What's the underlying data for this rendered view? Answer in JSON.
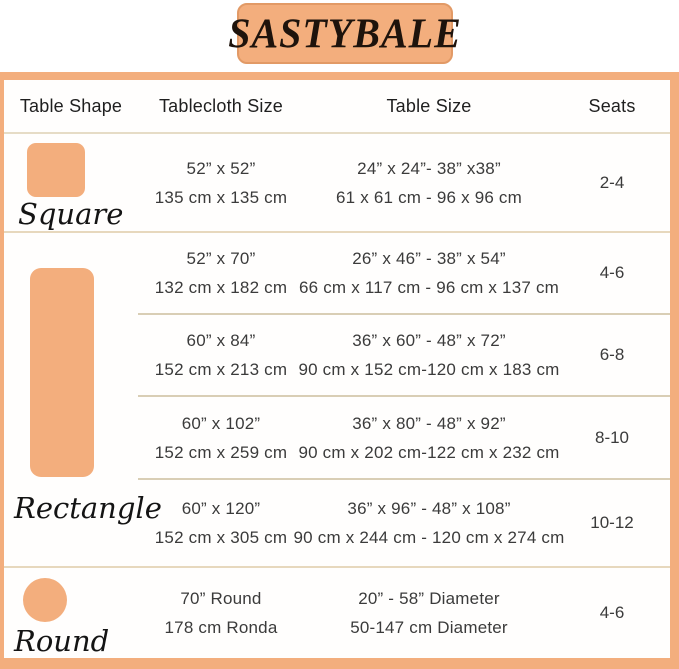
{
  "brand": "SASTYBALE",
  "colors": {
    "peach": "#f3ae7d",
    "banner_border": "#e29a66",
    "divider_tan": "#d9ceb5",
    "text": "#3b3b3b"
  },
  "headers": [
    "Table Shape",
    "Tablecloth Size",
    "Table Size",
    "Seats"
  ],
  "shapes": {
    "square": "Square",
    "rectangle": "Rectangle",
    "round": "Round"
  },
  "rows": [
    {
      "cloth_in": "52” x 52”",
      "cloth_cm": "135 cm x 135 cm",
      "table_in": "24” x 24”- 38” x38”",
      "table_cm": "61 x 61 cm - 96 x 96 cm",
      "seats": "2-4"
    },
    {
      "cloth_in": "52” x 70”",
      "cloth_cm": "132 cm x 182 cm",
      "table_in": "26” x 46” - 38” x 54”",
      "table_cm": "66 cm x 117 cm - 96 cm x 137 cm",
      "seats": "4-6"
    },
    {
      "cloth_in": "60” x 84”",
      "cloth_cm": "152 cm x 213 cm",
      "table_in": "36” x 60” - 48” x 72”",
      "table_cm": "90 cm x 152 cm-120 cm x 183 cm",
      "seats": "6-8"
    },
    {
      "cloth_in": "60” x 102”",
      "cloth_cm": "152 cm x 259 cm",
      "table_in": "36” x 80” - 48” x 92”",
      "table_cm": "90 cm x 202 cm-122 cm x 232 cm",
      "seats": "8-10"
    },
    {
      "cloth_in": "60” x 120”",
      "cloth_cm": "152 cm x 305 cm",
      "table_in": "36” x 96” - 48” x 108”",
      "table_cm": "90 cm x 244 cm - 120 cm x 274 cm",
      "seats": "10-12"
    },
    {
      "cloth_in": "70” Round",
      "cloth_cm": "178 cm Ronda",
      "table_in": "20” - 58” Diameter",
      "table_cm": "50-147 cm Diameter",
      "seats": "4-6"
    }
  ],
  "chart_data": {
    "type": "table",
    "title": "SASTYBALE",
    "columns": [
      "Table Shape",
      "Tablecloth Size",
      "Table Size",
      "Seats"
    ],
    "rows": [
      [
        "Square",
        "52” x 52” / 135 cm x 135 cm",
        "24” x 24”- 38” x38” / 61 x 61 cm - 96 x 96 cm",
        "2-4"
      ],
      [
        "Rectangle",
        "52” x 70” / 132 cm x 182 cm",
        "26” x 46” - 38” x 54” / 66 cm x 117 cm - 96 cm x 137 cm",
        "4-6"
      ],
      [
        "Rectangle",
        "60” x 84” / 152 cm x 213 cm",
        "36” x 60” - 48” x 72” / 90 cm x 152 cm-120 cm x 183 cm",
        "6-8"
      ],
      [
        "Rectangle",
        "60” x 102” / 152 cm x 259 cm",
        "36” x 80” - 48” x 92” / 90 cm x 202 cm-122 cm x 232 cm",
        "8-10"
      ],
      [
        "Rectangle",
        "60” x 120” / 152 cm x 305 cm",
        "36” x 96” - 48” x 108” / 90 cm x 244 cm - 120 cm x 274 cm",
        "10-12"
      ],
      [
        "Round",
        "70” Round / 178 cm Ronda",
        "20” - 58” Diameter / 50-147 cm Diameter",
        "4-6"
      ]
    ]
  }
}
